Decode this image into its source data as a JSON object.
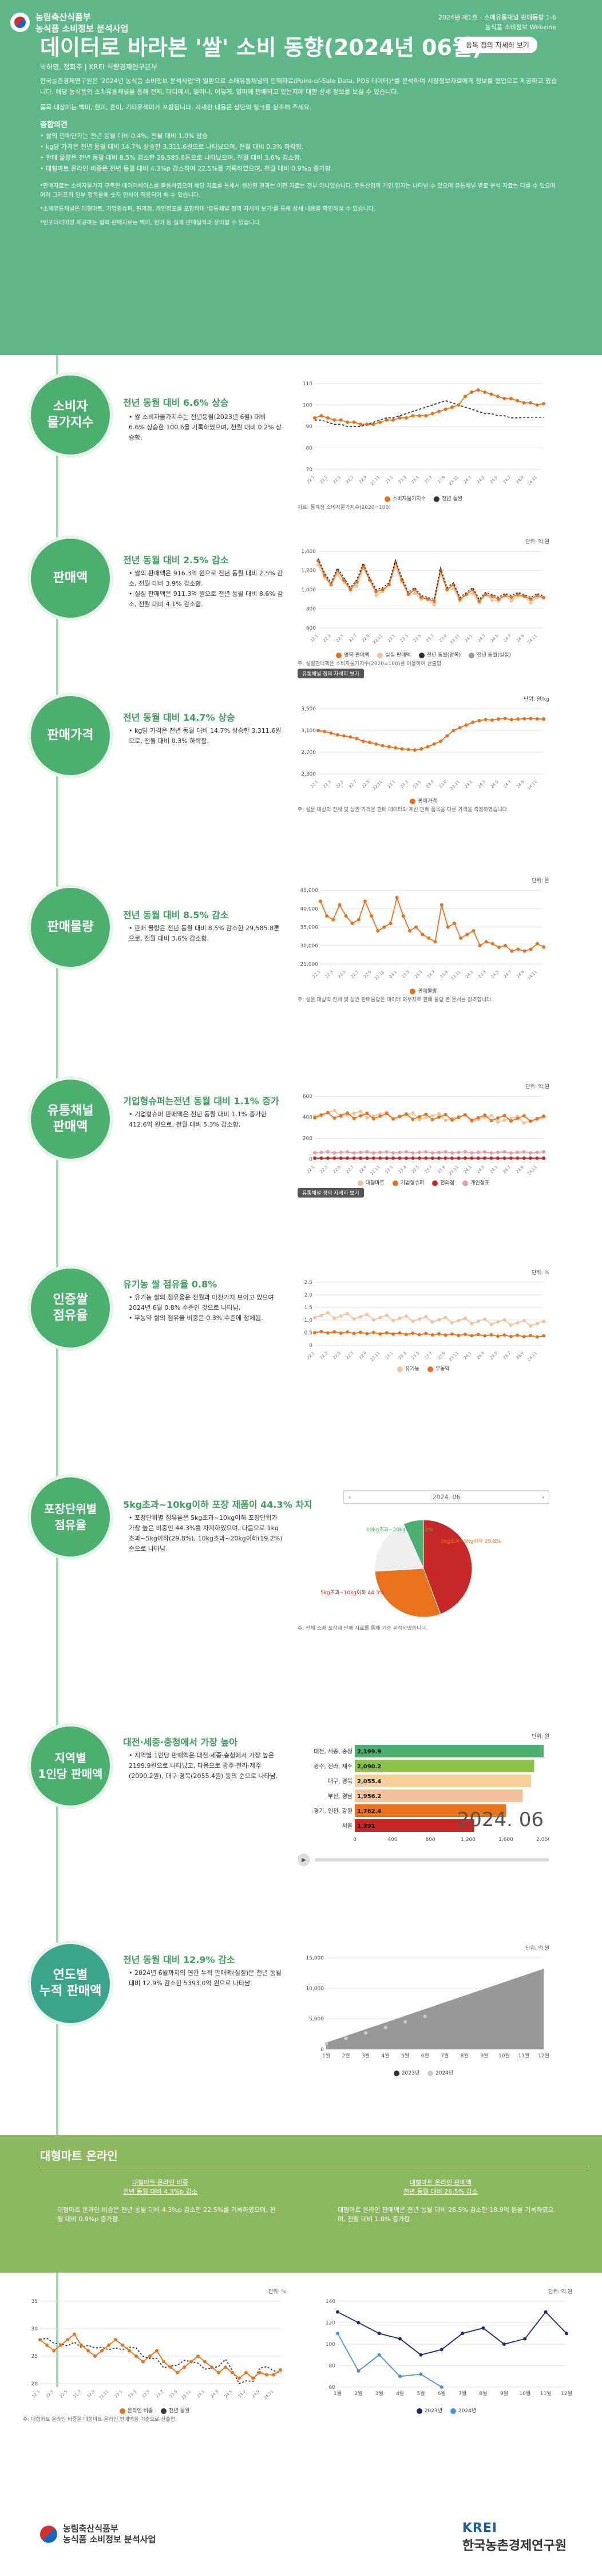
{
  "header": {
    "org1": "농림축산식품부",
    "org2": "농식품 소비정보 분석사업",
    "issue": "2024년 제1호 - 소매유통채널 판매동향 1-6",
    "issue2": "농식품 소비정보 Webzine",
    "title": "데이터로 바라본 '쌀' 소비 동향(2024년 06월)",
    "detail_btn": "품목 정의 자세히 보기",
    "byline": "박하영, 정화주 | KREI 식량경제연구본부",
    "intro": "한국농촌경제연구원은 '2024년 농식품 소비정보 분석사업'의 일환으로 소매유통채널의 판매자료(Point-of-Sale Data, POS 데이터)*를 분석하여 시장정보자료에게 정보를 협업으로 제공하고 있습니다. 해당 농식품의 소매유통채널을 통해 전체, 마디에서, 얼마나, 어떻게, 얼마에 판매되고 있는지에 대한 상세 정보를 보실 수 있습니다.",
    "intro2": "품목 대상에는 백미, 현미, 혼미, 기타유색미가 포함됩니다. 자세한 내용은 상단의 링크를 참조해 주세요.",
    "summary_label": "종합의견",
    "summary": [
      "쌀의 판매단가는 전년 동월 대비 0.4%, 전월 대비 1.0% 상승",
      "kg당 가격은 전년 동월 대비 14.7% 상승한 3,311.6원으로 나타났으며, 전월 대비 0.3% 하락함.",
      "판매 물량은 전년 동월 대비 8.5% 감소한 29,585.8톤으로 나타났으며, 전월 대비 3.6% 감소함.",
      "대형마트 온라인 비중은 전년 동월 대비 4.3%p 감소하여 22.5%를 기록하였으며, 전월 대비 0.9%p 증가함."
    ],
    "note1": "*판매자료는 소비자물가지 구축한 데이터베이스를 활용하였으며 해당 자료를 통해서 생산된 결과는 이전 자료는 전부 아니었습니다. 유통산업의 개인 입지는 나타날 수 있으며 유통채널 별로 분석 자료는 다를 수 있으며 여러 그래프의 일부 항목들에 숫자 인식이 적용되어 해 수 있습니다.",
    "note2": "*소매유통채널은 대형마트, 기업형슈퍼, 편의점, 개인점포를 포함하며 '유통채널 정의 자세히 보기'를 통해 상세 내용을 확인하실 수 있습니다.",
    "note3": "*인포더래이밍 제공하는 협력 판매자료는 백미, 현미 등 실제 판매실적과 상이할 수 있습니다."
  },
  "sections": [
    {
      "circle": "소비자\n물가지수",
      "head": "전년 동월 대비 6.6% 상승",
      "bullets": [
        "쌀 소비자물가지수는 전년동월(2023년 6월) 대비 6.6% 상승한 100.6을 기록하였으며, 전월 대비 0.2% 상승함."
      ]
    },
    {
      "circle": "판매액",
      "head": "전년 동월 대비 2.5% 감소",
      "bullets": [
        "쌀의 판매액은 916.3억 원으로 전년 동월 대비 2.5% 감소, 전월 대비 3.9% 감소함.",
        "실질 판매액은 911.3억 원으로 전년 동월 대비 8.6% 감소, 전월 대비 4.1% 감소함."
      ]
    },
    {
      "circle": "판매가격",
      "head": "전년 동월 대비 14.7% 상승",
      "bullets": [
        "kg당 가격은 전년 동월 대비 14.7% 상승한 3,311.6원으로, 전월 대비 0.3% 하락함."
      ]
    },
    {
      "circle": "판매물량",
      "head": "전년 동월 대비 8.5% 감소",
      "bullets": [
        "판매 물량은 전년 동월 대비 8.5% 감소한 29,585.8톤으로, 전월 대비 3.6% 감소함."
      ]
    },
    {
      "circle": "유통채널\n판매액",
      "head": "기업형슈퍼는전년 동월 대비 1.1% 증가",
      "bullets": [
        "기업형슈퍼 판매액은 전년 동월 대비 1.1% 증가한 412.6억 원으로, 전월 대비 5.3% 감소함."
      ]
    },
    {
      "circle": "인증쌀\n점유율",
      "head": "유기농 쌀 점유율 0.8%",
      "bullets": [
        "유기농 쌀의 점유율은 전월과 마찬가지 보이고 있으며 2024년 6월 0.8% 수준인 것으로 나타남.",
        "무농약 쌀의 점유율 비중은 0.3% 수준에 정체됨."
      ]
    },
    {
      "circle": "포장단위별\n점유율",
      "head": "5kg초과~10kg이하 포장 제품이 44.3% 차지",
      "bullets": [
        "포장단위별 점유율은 5kg초과~10kg이하 포장단위가 가장 높은 비중인 44.3%를 차지하였으며, 다음으로 1kg초과~5kg이하(29.8%), 10kg초과~20kg이하(19.2%) 순으로 나타남."
      ]
    },
    {
      "circle": "지역별\n1인당 판매액",
      "head": "대전·세종·충청에서 가장 높아",
      "bullets": [
        "지역별 1인당 판매액은 대전·세종·충청에서 가장 높은 2199.9원으로 나타났고, 다음으로 광주·전라·제주(2090.2원), 대구·경북(2055.4원) 등의 순으로 나타남."
      ]
    },
    {
      "circle": "연도별\n누적 판매액",
      "head": "전년 동월 대비 12.9% 감소",
      "bullets": [
        "2024년 6월까지의 연간 누적 판매액(실질)은 전년 동월 대비 12.9% 감소한 5393.0억 원으로 나타남."
      ]
    }
  ],
  "cpi_chart": {
    "ylim": [
      70,
      110
    ],
    "ticks": [
      "110",
      "100",
      "90",
      "80",
      "70"
    ],
    "legend": [
      "소비자물가지수",
      "전년 동월"
    ],
    "note": "자료: 통계청 소비자물가지수(2020=100)"
  },
  "sales_chart": {
    "unit": "단위: 억 원",
    "ticks": [
      "1,400",
      "1,200",
      "1,000",
      "800",
      "600"
    ],
    "legend": [
      "명목 판매액",
      "실질 판매액",
      "전년 동월(명목)",
      "전년 동월(실질)"
    ],
    "note": "주: 실질판매액은 소비자물가지수(2020=100)를 이용하여 산출함",
    "tag": "유통채널 정의 자세히 보기"
  },
  "price_chart": {
    "unit": "단위: 원/kg",
    "ticks": [
      "3,500",
      "3,100",
      "2,700",
      "2,300"
    ],
    "legend": [
      "판매가격"
    ],
    "note": "주: 설문 대상의 전체 및 상권 가격은 판매 데이터와 계산 판매 품목을 다룬 가격을 측정하였습니다."
  },
  "volume_chart": {
    "unit": "단위: 톤",
    "ticks": [
      "45,000",
      "40,000",
      "35,000",
      "30,000",
      "25,000"
    ],
    "legend": [
      "판매물량"
    ],
    "note": "주: 설문 대상의 전체 및 상권 판매물량은 데이터 외부자료 판매 물량 본 문서를 참조합니다."
  },
  "channel_chart": {
    "unit": "단위: 억 원",
    "ticks": [
      "600",
      "400",
      "200",
      "0"
    ],
    "legend": [
      "대형마트",
      "기업형슈퍼",
      "편의점",
      "개인점포"
    ],
    "tag": "유통채널 정의 자세히 보기"
  },
  "cert_chart": {
    "unit": "단위: %",
    "ticks": [
      "2.5",
      "2.0",
      "1.5",
      "1.0",
      "0.5",
      "0"
    ],
    "legend": [
      "유기농",
      "무농약"
    ]
  },
  "pack_chart": {
    "selector": "2024. 06",
    "labels": [
      "1kg초과~5kg이하 29.8%",
      "10kg초과~20kg이하 19.2%",
      "5kg초과~10kg이하 44.3%"
    ],
    "note": "주: 전체 소매 포장재 판매 자료를 통해 기준 분석하였습니다."
  },
  "region_chart": {
    "unit": "단위: 원",
    "date": "2024. 06",
    "rows": [
      {
        "name": "대전, 세종, 충청",
        "value": "2,199.9",
        "v": 2199.9
      },
      {
        "name": "광주, 전라, 제주",
        "value": "2,090.2",
        "v": 2090.2
      },
      {
        "name": "대구, 경북",
        "value": "2,055.4",
        "v": 2055.4
      },
      {
        "name": "부산, 경남",
        "value": "1,956.2",
        "v": 1956.2
      },
      {
        "name": "경기, 인천, 강원",
        "value": "1,762.4",
        "v": 1762.4
      },
      {
        "name": "서울",
        "value": "1,391",
        "v": 1391
      }
    ],
    "xticks": [
      "0",
      "400",
      "800",
      "1,200",
      "1,600",
      "2,000"
    ]
  },
  "cum_chart": {
    "unit": "단위: 억 원",
    "ticks": [
      "15,000",
      "10,000",
      "5,000",
      "0"
    ],
    "months": [
      "1월",
      "2월",
      "3월",
      "4월",
      "5월",
      "6월",
      "7월",
      "8월",
      "9월",
      "10월",
      "11월",
      "12월"
    ],
    "legend": [
      "2023년",
      "2024년"
    ]
  },
  "online": {
    "title": "대형마트 온라인",
    "c1_title": "대형마트 온라인 비중",
    "c1_sub": "전년 동월 대비 4.3%p 감소",
    "c1_text": "대형마트 온라인 비중은 전년 동월 대비 4.3%p 감소한 22.5%를 기록하였으며, 전월 대비 0.9%p 증가함.",
    "c2_title": "대형마트 온라인 판매액",
    "c2_sub": "전년 동월 대비 26.5% 감소",
    "c2_text": "대형마트 온라인 판매액은 전년 동월 대비 26.5% 감소한 18.9억 원을 기록하였으며, 전월 대비 1.0% 증가함."
  },
  "online_chart1": {
    "unit": "단위: %",
    "ticks": [
      "35",
      "30",
      "25",
      "20"
    ],
    "legend": [
      "온라인 비중",
      "전년 동월"
    ],
    "note": "주: 대형마트 온라인 비중은 대형마트 온라인 판매액을 기준으로 산출함."
  },
  "online_chart2": {
    "unit": "단위: 억 원",
    "ticks": [
      "140",
      "120",
      "100",
      "80",
      "60"
    ],
    "months": [
      "1월",
      "2월",
      "3월",
      "4월",
      "5월",
      "6월",
      "7월",
      "8월",
      "9월",
      "10월",
      "11월",
      "12월"
    ],
    "legend": [
      "2023년",
      "2024년"
    ]
  },
  "footer": {
    "org1": "농림축산식품부",
    "org2": "농식품 소비정보 분석사업",
    "krei_en": "KREI",
    "krei_kr": "한국농촌경제연구원"
  },
  "colors": {
    "green": "#5eb88c",
    "orange": "#e8721c",
    "red": "#c62828"
  }
}
